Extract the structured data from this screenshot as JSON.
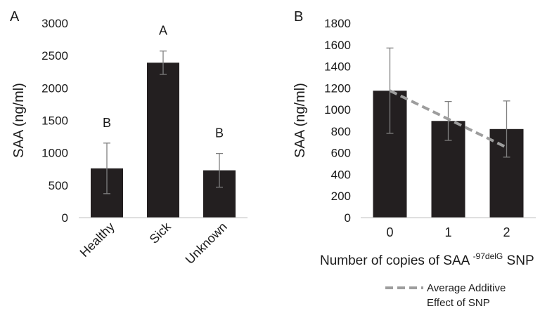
{
  "chart_data": [
    {
      "panel_label": "A",
      "type": "bar",
      "categories": [
        "Healthy",
        "Sick",
        "Unknown"
      ],
      "values": [
        760,
        2390,
        730
      ],
      "error": [
        390,
        180,
        260
      ],
      "significance": [
        "B",
        "A",
        "B"
      ],
      "ylabel": "SAA (ng/ml)",
      "xlabel": "",
      "ylim": [
        0,
        3000
      ],
      "yticks": [
        0,
        500,
        1000,
        1500,
        2000,
        2500,
        3000
      ],
      "ytick_labels": [
        "0",
        "500",
        "1000",
        "1500",
        "2000",
        "2500",
        "3000"
      ],
      "grid": false,
      "bar_color": "#231f20",
      "x_label_rotation": "rotated"
    },
    {
      "panel_label": "B",
      "type": "bar",
      "categories": [
        "0",
        "1",
        "2"
      ],
      "values": [
        1175,
        895,
        820
      ],
      "error": [
        395,
        180,
        260
      ],
      "ylabel": "SAA (ng/ml)",
      "xlabel": {
        "main": "Number of copies of SAA",
        "superscript": "-97delG",
        "suffix": " SNP"
      },
      "ylim": [
        0,
        1800
      ],
      "yticks": [
        0,
        200,
        400,
        600,
        800,
        1000,
        1200,
        1400,
        1600,
        1800
      ],
      "ytick_labels": [
        "0",
        "200",
        "400",
        "600",
        "800",
        "1000",
        "1200",
        "1400",
        "1600",
        "1800"
      ],
      "grid": false,
      "bar_color": "#231f20",
      "overlay_line": {
        "name": "Average Additive Effect of SNP",
        "name_lines": [
          "Average Additive",
          "Effect of SNP"
        ],
        "x": [
          "0",
          "2"
        ],
        "y": [
          1175,
          650
        ],
        "style": "dashed",
        "color": "#9d9d9d"
      },
      "legend_position": "bottom-center"
    }
  ]
}
